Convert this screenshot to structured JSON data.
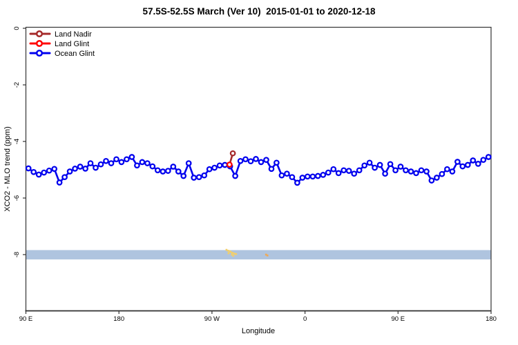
{
  "chart_data": {
    "type": "line",
    "title": "57.5S-52.5S March (Ver 10)  2015-01-01 to 2020-12-18",
    "xlabel": "Longitude",
    "ylabel": "XCO2 - MLO trend (ppm)",
    "x_axis": {
      "note": "longitude wraps eastward starting at 90E; plot coordinate degrees 90..540",
      "range_deg": [
        90,
        540
      ],
      "ticks_deg": [
        90,
        180,
        270,
        360,
        450,
        540
      ],
      "tick_labels": [
        "90 E",
        "180",
        "90 W",
        "0",
        "90 E",
        "180"
      ]
    },
    "y_axis": {
      "ticks": [
        0,
        -2,
        -4,
        -6,
        -8
      ],
      "tick_labels": [
        "0",
        "-2",
        "-4",
        "-6",
        "-8"
      ],
      "ylim": [
        0.1,
        -10.05
      ],
      "grid": false
    },
    "legend_position": "top-left",
    "series": [
      {
        "name": "Land Nadir",
        "color": "#A52A2A",
        "marker": "open-circle",
        "x_deg": [
          287,
          290.2
        ],
        "values": [
          -4.82,
          -4.42
        ]
      },
      {
        "name": "Land Glint",
        "color": "#FF0000",
        "marker": "open-circle",
        "x_deg": [
          287
        ],
        "values": [
          -4.82
        ]
      },
      {
        "name": "Ocean Glint",
        "color": "#0000EE",
        "marker": "open-circle",
        "x_start_deg": 92.5,
        "x_step_deg": 5,
        "values": [
          -4.95,
          -5.08,
          -5.17,
          -5.1,
          -5.03,
          -4.97,
          -5.45,
          -5.26,
          -5.06,
          -4.96,
          -4.89,
          -4.96,
          -4.77,
          -4.93,
          -4.81,
          -4.69,
          -4.77,
          -4.63,
          -4.73,
          -4.63,
          -4.55,
          -4.85,
          -4.73,
          -4.77,
          -4.88,
          -5.02,
          -5.06,
          -5.04,
          -4.89,
          -5.06,
          -5.22,
          -4.77,
          -5.28,
          -5.26,
          -5.2,
          -4.98,
          -4.93,
          -4.85,
          -4.83,
          -4.88,
          -5.22,
          -4.69,
          -4.63,
          -4.7,
          -4.62,
          -4.73,
          -4.65,
          -4.97,
          -4.75,
          -5.2,
          -5.14,
          -5.26,
          -5.46,
          -5.28,
          -5.24,
          -5.24,
          -5.22,
          -5.18,
          -5.1,
          -4.98,
          -5.12,
          -5.02,
          -5.04,
          -5.14,
          -5.02,
          -4.85,
          -4.75,
          -4.93,
          -4.83,
          -5.14,
          -4.8,
          -5.02,
          -4.89,
          -5.02,
          -5.06,
          -5.12,
          -5.02,
          -5.06,
          -5.38,
          -5.28,
          -5.15,
          -4.98,
          -5.06,
          -4.72,
          -4.88,
          -4.83,
          -4.67,
          -4.79,
          -4.65,
          -4.55
        ]
      }
    ],
    "band": {
      "label": "horizontal reference band at -8 ppm",
      "y_top": -7.84,
      "y_bottom": -8.17,
      "color": "#AFC4DF"
    },
    "specks": [
      {
        "label": "land-marks-yellow",
        "color": "#F2CF6B",
        "points": [
          [
            284.0,
            -7.83
          ],
          [
            285.5,
            -7.86
          ],
          [
            286.0,
            -7.95
          ],
          [
            287.0,
            -7.88
          ],
          [
            288.0,
            -7.9
          ],
          [
            289.3,
            -7.93
          ],
          [
            289.3,
            -8.0
          ],
          [
            290.6,
            -7.95
          ],
          [
            290.6,
            -8.04
          ],
          [
            292.0,
            -7.97
          ],
          [
            293.3,
            -7.98
          ]
        ]
      },
      {
        "label": "land-marks-orange",
        "color": "#F0A955",
        "points": [
          [
            322.3,
            -8.0
          ],
          [
            323.6,
            -8.03
          ]
        ]
      }
    ]
  },
  "legend": {
    "items": [
      {
        "label": "Land Nadir",
        "color": "#A52A2A"
      },
      {
        "label": "Land Glint",
        "color": "#FF0000"
      },
      {
        "label": "Ocean Glint",
        "color": "#0000EE"
      }
    ]
  }
}
